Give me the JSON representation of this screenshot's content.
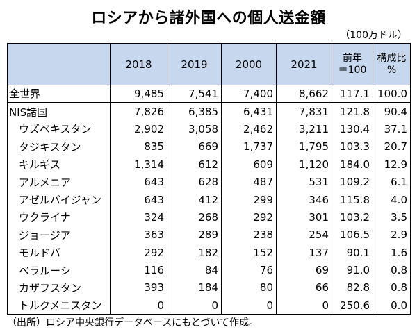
{
  "title": "ロシアから諸外国への個人送金額",
  "unit": "（100万ドル）",
  "source": "（出所）ロシア中央銀行データベースにもとづいて作成。",
  "chart_data": {
    "type": "table",
    "columns": [
      "",
      "2018",
      "2019",
      "2000",
      "2021",
      "前年\n＝100",
      "構成比\n%"
    ],
    "column_lines": [
      [
        ""
      ],
      [
        "2018"
      ],
      [
        "2019"
      ],
      [
        "2000"
      ],
      [
        "2021"
      ],
      [
        "前年",
        "＝100"
      ],
      [
        "構成比",
        "%"
      ]
    ],
    "rows": [
      {
        "name": "全世界",
        "values": [
          "9,485",
          "7,541",
          "7,400",
          "8,662",
          "117.1",
          "100.0"
        ]
      },
      {
        "name": "NIS諸国",
        "values": [
          "7,826",
          "6,385",
          "6,431",
          "7,831",
          "121.8",
          "90.4"
        ]
      },
      {
        "name": "ウズベキスタン",
        "values": [
          "2,902",
          "3,058",
          "2,462",
          "3,211",
          "130.4",
          "37.1"
        ]
      },
      {
        "name": "タジキスタン",
        "values": [
          "835",
          "669",
          "1,737",
          "1,795",
          "103.3",
          "20.7"
        ]
      },
      {
        "name": "キルギス",
        "values": [
          "1,314",
          "612",
          "609",
          "1,120",
          "184.0",
          "12.9"
        ]
      },
      {
        "name": "アルメニア",
        "values": [
          "643",
          "628",
          "487",
          "531",
          "109.2",
          "6.1"
        ]
      },
      {
        "name": "アゼルバイジャン",
        "values": [
          "643",
          "412",
          "299",
          "346",
          "115.8",
          "4.0"
        ]
      },
      {
        "name": "ウクライナ",
        "values": [
          "324",
          "268",
          "292",
          "301",
          "103.2",
          "3.5"
        ]
      },
      {
        "name": "ジョージア",
        "values": [
          "363",
          "289",
          "238",
          "254",
          "106.5",
          "2.9"
        ]
      },
      {
        "name": "モルドバ",
        "values": [
          "292",
          "182",
          "152",
          "137",
          "90.1",
          "1.6"
        ]
      },
      {
        "name": "ベラルーシ",
        "values": [
          "116",
          "84",
          "76",
          "69",
          "91.0",
          "0.8"
        ]
      },
      {
        "name": "カザフスタン",
        "values": [
          "393",
          "184",
          "80",
          "66",
          "82.8",
          "0.8"
        ]
      },
      {
        "name": "トルクメニスタン",
        "values": [
          "0",
          "0",
          "0",
          "0",
          "250.6",
          "0.0"
        ]
      }
    ]
  }
}
